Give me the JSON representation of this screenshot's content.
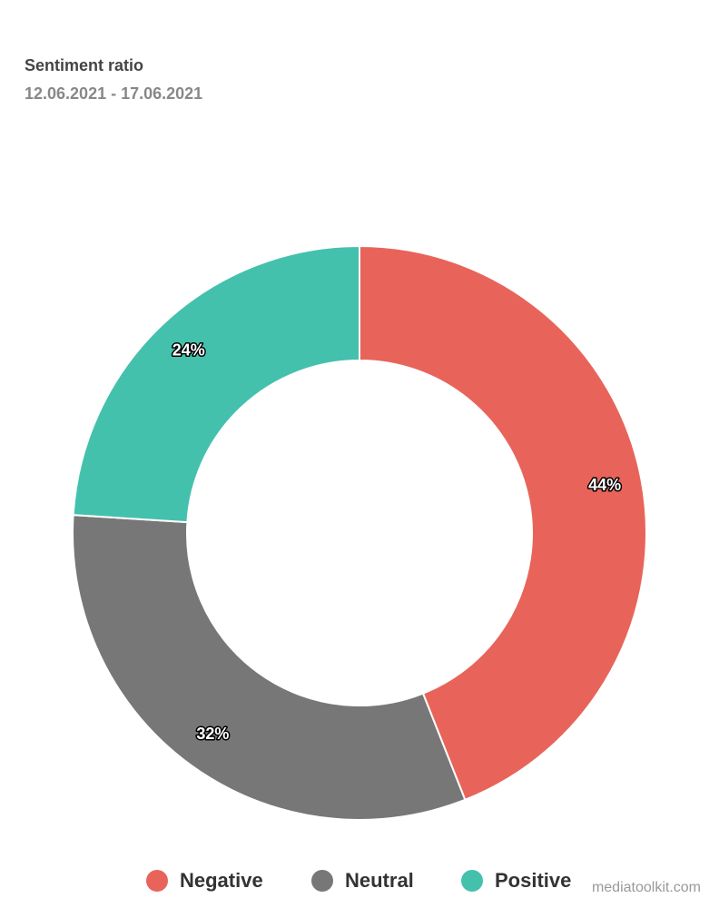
{
  "chart_data": {
    "type": "pie",
    "title": "Sentiment ratio",
    "subtitle": "12.06.2021 - 17.06.2021",
    "categories": [
      "Negative",
      "Neutral",
      "Positive"
    ],
    "values": [
      44,
      32,
      24
    ],
    "value_labels": [
      "44%",
      "32%",
      "24%"
    ],
    "colors": [
      "#e8645a",
      "#777777",
      "#44c1ac"
    ],
    "credit": "mediatoolkit.com"
  }
}
